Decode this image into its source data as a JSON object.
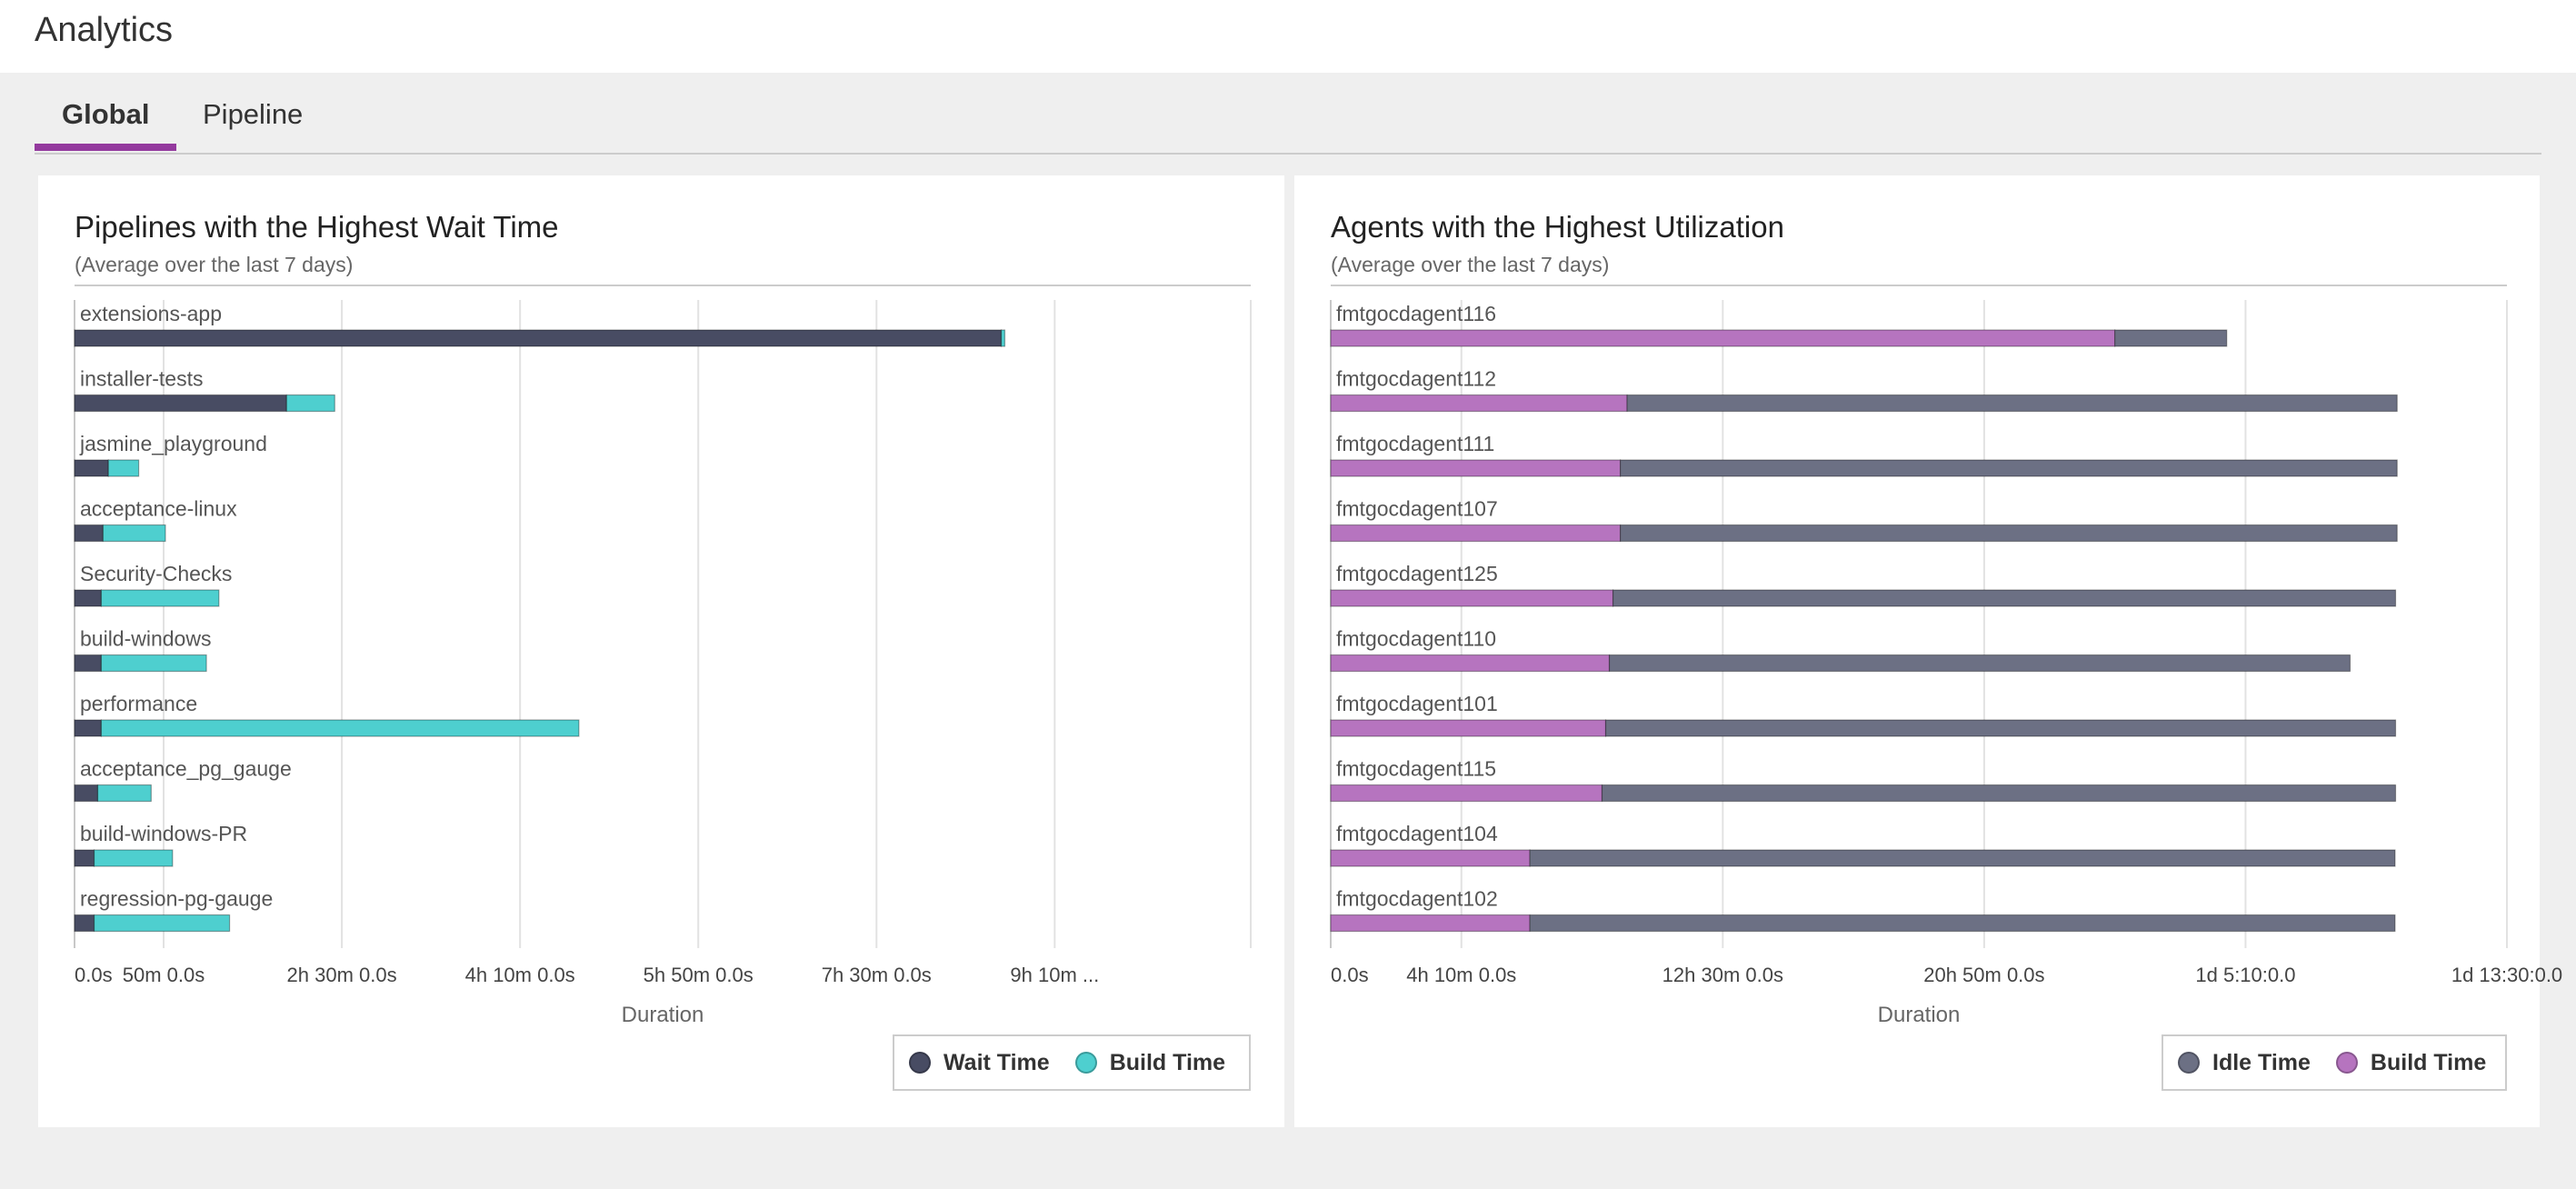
{
  "header": {
    "title": "Analytics"
  },
  "tabs": [
    {
      "label": "Global",
      "active": true
    },
    {
      "label": "Pipeline",
      "active": false
    }
  ],
  "colors": {
    "wait": "#484c63",
    "build_cyan": "#4ecfcf",
    "idle": "#6c7084",
    "build_purple": "#b674bf",
    "accent": "#943a9e"
  },
  "wait_chart": {
    "title": "Pipelines with the Highest Wait Time",
    "subtitle": "(Average over the last 7 days)",
    "xlabel": "Duration",
    "legend": [
      "Wait Time",
      "Build Time"
    ]
  },
  "agents_chart": {
    "title": "Agents with the Highest Utilization",
    "subtitle": "(Average over the last 7 days)",
    "xlabel": "Duration",
    "legend": [
      "Idle Time",
      "Build Time"
    ]
  },
  "chart_data": [
    {
      "type": "bar",
      "orientation": "horizontal",
      "stacked": true,
      "title": "Pipelines with the Highest Wait Time",
      "subtitle": "(Average over the last 7 days)",
      "xlabel": "Duration",
      "x_unit": "minutes",
      "xlim": [
        0,
        660
      ],
      "ticks": [
        0,
        50,
        150,
        250,
        350,
        450,
        550
      ],
      "tick_labels": [
        "0.0s",
        "50m 0.0s",
        "2h 30m 0.0s",
        "4h 10m 0.0s",
        "5h 50m 0.0s",
        "7h 30m 0.0s",
        "9h 10m ..."
      ],
      "grid": true,
      "legend_position": "bottom-right",
      "categories": [
        "extensions-app",
        "installer-tests",
        "jasmine_playground",
        "acceptance-linux",
        "Security-Checks",
        "build-windows",
        "performance",
        "acceptance_pg_gauge",
        "build-windows-PR",
        "regression-pg-gauge"
      ],
      "series": [
        {
          "name": "Wait Time",
          "values": [
            520,
            119,
            19,
            16,
            15,
            15,
            15,
            13,
            11,
            11
          ]
        },
        {
          "name": "Build Time",
          "values": [
            2,
            27,
            17,
            35,
            66,
            59,
            268,
            30,
            44,
            76
          ]
        }
      ]
    },
    {
      "type": "bar",
      "orientation": "horizontal",
      "stacked": true,
      "title": "Agents with the Highest Utilization",
      "subtitle": "(Average over the last 7 days)",
      "xlabel": "Duration",
      "x_unit": "minutes",
      "xlim": [
        0,
        2250
      ],
      "ticks": [
        0,
        250,
        750,
        1250,
        1750,
        2250
      ],
      "tick_labels": [
        "0.0s",
        "4h 10m 0.0s",
        "12h 30m 0.0s",
        "20h 50m 0.0s",
        "1d 5:10:0.0",
        "1d 13:30:0.0"
      ],
      "grid": true,
      "legend_position": "bottom-right",
      "categories": [
        "fmtgocdagent116",
        "fmtgocdagent112",
        "fmtgocdagent111",
        "fmtgocdagent107",
        "fmtgocdagent125",
        "fmtgocdagent110",
        "fmtgocdagent101",
        "fmtgocdagent115",
        "fmtgocdagent104",
        "fmtgocdagent102"
      ],
      "series": [
        {
          "name": "Build Time",
          "values": [
            1500,
            567,
            554,
            554,
            540,
            533,
            526,
            519,
            381,
            381
          ]
        },
        {
          "name": "Idle Time",
          "values": [
            214,
            1473,
            1486,
            1486,
            1497,
            1417,
            1511,
            1518,
            1655,
            1655
          ]
        }
      ]
    }
  ]
}
